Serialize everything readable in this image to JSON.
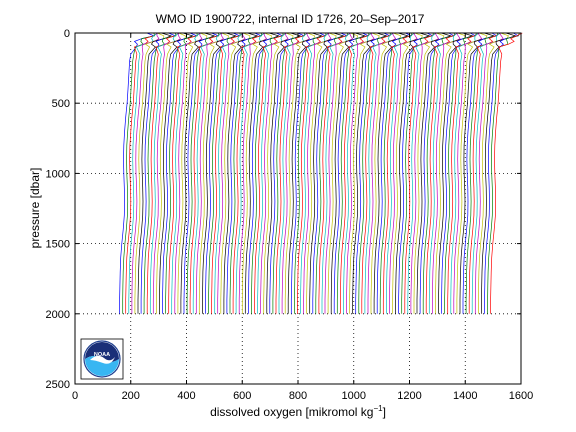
{
  "chart_data": {
    "type": "line",
    "title": "WMO ID 1900722, internal ID 1726, 20–Sep–2017",
    "xlabel": "dissolved oxygen [mikromol kg",
    "xlabel_sup": "−1",
    "xlabel_end": "]",
    "ylabel": "pressure [dbar]",
    "xlim": [
      0,
      1600
    ],
    "ylim": [
      0,
      2500
    ],
    "y_reversed": true,
    "grid": "dotted",
    "xticks": [
      0,
      200,
      400,
      600,
      800,
      1000,
      1200,
      1400,
      1600
    ],
    "yticks": [
      0,
      500,
      1000,
      1500,
      2000,
      2500
    ],
    "xtick_labels": [
      "0",
      "200",
      "400",
      "600",
      "800",
      "1000",
      "1200",
      "1400",
      "1600"
    ],
    "ytick_labels": [
      "0",
      "500",
      "1000",
      "1500",
      "2000",
      "2500"
    ],
    "profile_count": 122,
    "profile_offset_start": 0,
    "profile_offset_step": 11,
    "series_colors": [
      "#0000ff",
      "#008000",
      "#ff0000",
      "#00bfbf",
      "#bf00bf",
      "#bfbf00",
      "#000000"
    ],
    "base_profile": {
      "pressure": [
        0,
        20,
        40,
        60,
        80,
        100,
        150,
        200,
        300,
        400,
        500,
        600,
        700,
        800,
        900,
        1000,
        1100,
        1200,
        1300,
        1400,
        1500,
        1600,
        1700,
        1800,
        1900,
        2000
      ],
      "oxygen": [
        258,
        265,
        245,
        230,
        215,
        205,
        200,
        196,
        193,
        190,
        187,
        182,
        178,
        175,
        174,
        175,
        177,
        178,
        177,
        173,
        168,
        164,
        162,
        161,
        160,
        160
      ]
    },
    "logo": "NOAA"
  }
}
